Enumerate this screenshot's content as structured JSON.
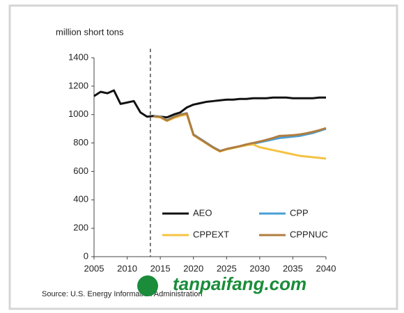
{
  "chart_data": {
    "type": "line",
    "y_axis_label": "million short tons",
    "source": "Source: U.S. Energy Information Administration",
    "watermark": "tanpaifang.com",
    "x": [
      2005,
      2006,
      2007,
      2008,
      2009,
      2010,
      2011,
      2012,
      2013,
      2014,
      2015,
      2016,
      2017,
      2018,
      2019,
      2020,
      2021,
      2022,
      2023,
      2024,
      2025,
      2026,
      2027,
      2028,
      2029,
      2030,
      2031,
      2032,
      2033,
      2034,
      2035,
      2036,
      2037,
      2038,
      2039,
      2040
    ],
    "series": [
      {
        "name": "AEO",
        "color": "#111111",
        "values": [
          1130,
          1160,
          1150,
          1170,
          1075,
          1085,
          1095,
          1015,
          985,
          990,
          985,
          980,
          1000,
          1015,
          1050,
          1070,
          1080,
          1090,
          1095,
          1100,
          1105,
          1105,
          1110,
          1110,
          1115,
          1115,
          1115,
          1120,
          1120,
          1120,
          1115,
          1115,
          1115,
          1115,
          1120,
          1120
        ]
      },
      {
        "name": "CPP",
        "color": "#4a9fd6",
        "values": [
          null,
          null,
          null,
          null,
          null,
          null,
          null,
          null,
          null,
          990,
          985,
          960,
          985,
          1000,
          1010,
          860,
          830,
          800,
          770,
          745,
          755,
          765,
          775,
          785,
          795,
          805,
          815,
          825,
          835,
          840,
          845,
          850,
          860,
          870,
          885,
          900
        ]
      },
      {
        "name": "CPPEXT",
        "color": "#f5c242",
        "values": [
          null,
          null,
          null,
          null,
          null,
          null,
          null,
          null,
          null,
          985,
          980,
          955,
          975,
          990,
          1000,
          855,
          825,
          795,
          765,
          740,
          755,
          765,
          775,
          785,
          790,
          770,
          760,
          750,
          740,
          730,
          720,
          710,
          705,
          700,
          695,
          690
        ]
      },
      {
        "name": "CPPNUC",
        "color": "#b07d3f",
        "values": [
          null,
          null,
          null,
          null,
          null,
          null,
          null,
          null,
          null,
          988,
          983,
          958,
          982,
          998,
          1008,
          858,
          828,
          798,
          768,
          743,
          758,
          768,
          778,
          790,
          800,
          810,
          822,
          835,
          850,
          852,
          855,
          860,
          868,
          878,
          890,
          905
        ]
      }
    ],
    "vline_x": 2013.5,
    "xlim": [
      2005,
      2040
    ],
    "xticks": [
      2005,
      2010,
      2015,
      2020,
      2025,
      2030,
      2035,
      2040
    ],
    "ylim": [
      0,
      1400
    ],
    "yticks": [
      0,
      200,
      400,
      600,
      800,
      1000,
      1200,
      1400
    ]
  }
}
